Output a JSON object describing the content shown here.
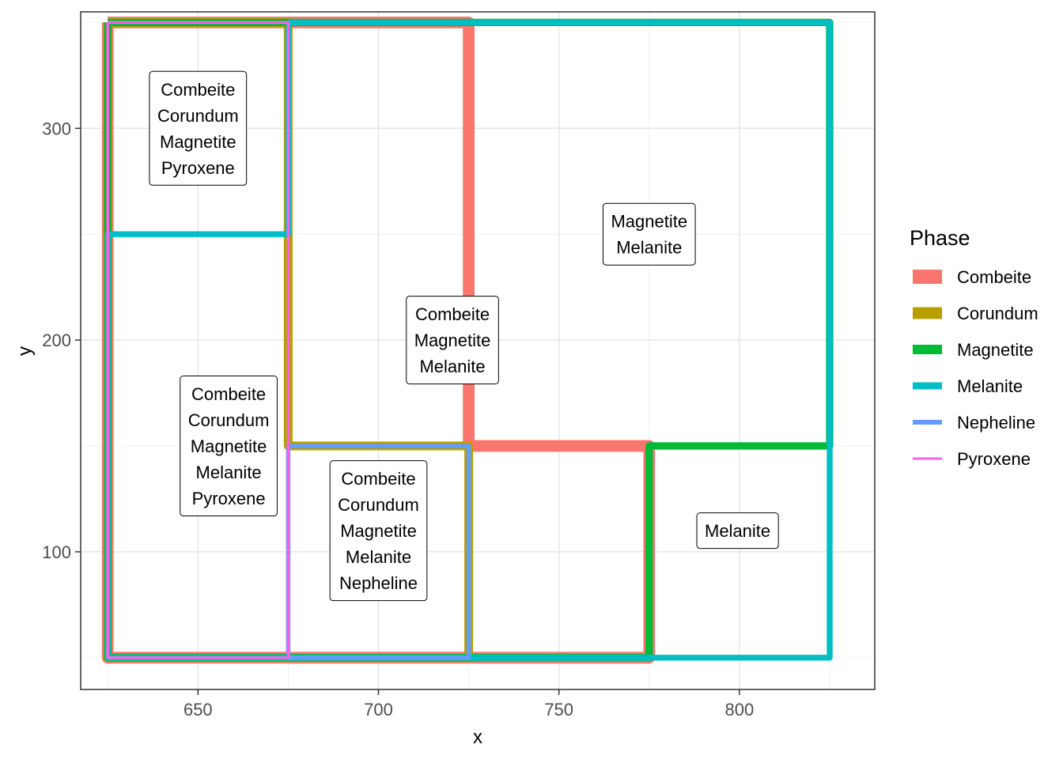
{
  "chart_data": {
    "type": "phase-diagram",
    "xlabel": "x",
    "ylabel": "y",
    "xlim": [
      617.5,
      837.5
    ],
    "ylim": [
      35,
      355
    ],
    "x_ticks": [
      650,
      700,
      750,
      800
    ],
    "y_ticks": [
      100,
      200,
      300
    ],
    "x_minor_ticks": [
      625,
      675,
      725,
      775,
      825
    ],
    "y_minor_ticks": [
      50,
      150,
      250,
      350
    ],
    "grid": true,
    "legend": {
      "title": "Phase",
      "position": "right",
      "entries": [
        {
          "name": "Combeite",
          "color": "#F8766D"
        },
        {
          "name": "Corundum",
          "color": "#B79F00"
        },
        {
          "name": "Magnetite",
          "color": "#00BA38"
        },
        {
          "name": "Melanite",
          "color": "#00BFC4"
        },
        {
          "name": "Nepheline",
          "color": "#619CFF"
        },
        {
          "name": "Pyroxene",
          "color": "#F564E3"
        }
      ]
    },
    "boundaries": [
      {
        "phase": "Combeite",
        "width": 4,
        "points": [
          [
            625,
            350
          ],
          [
            725,
            350
          ],
          [
            725,
            150
          ],
          [
            775,
            150
          ],
          [
            775,
            50
          ],
          [
            625,
            50
          ],
          [
            625,
            350
          ]
        ]
      },
      {
        "phase": "Corundum",
        "width": 3,
        "points": [
          [
            625,
            350
          ],
          [
            675,
            350
          ],
          [
            675,
            150
          ],
          [
            725,
            150
          ],
          [
            725,
            50
          ],
          [
            625,
            50
          ],
          [
            625,
            350
          ]
        ]
      },
      {
        "phase": "Magnetite",
        "width": 2.5,
        "points": [
          [
            625,
            350
          ],
          [
            825,
            350
          ],
          [
            825,
            150
          ],
          [
            775,
            150
          ],
          [
            775,
            50
          ],
          [
            625,
            50
          ],
          [
            625,
            350
          ]
        ]
      },
      {
        "phase": "Melanite",
        "width": 2,
        "points": [
          [
            675,
            350
          ],
          [
            825,
            350
          ],
          [
            825,
            50
          ],
          [
            625,
            50
          ],
          [
            625,
            250
          ],
          [
            675,
            250
          ],
          [
            675,
            350
          ]
        ]
      },
      {
        "phase": "Nepheline",
        "width": 1.5,
        "points": [
          [
            675,
            150
          ],
          [
            725,
            150
          ],
          [
            725,
            50
          ],
          [
            675,
            50
          ],
          [
            675,
            150
          ]
        ]
      },
      {
        "phase": "Pyroxene",
        "width": 1,
        "points": [
          [
            625,
            350
          ],
          [
            675,
            350
          ],
          [
            675,
            50
          ],
          [
            625,
            50
          ],
          [
            625,
            350
          ]
        ]
      }
    ],
    "regions": [
      {
        "x": 650,
        "y": 300,
        "lines": [
          "Combeite",
          "Corundum",
          "Magnetite",
          "Pyroxene"
        ]
      },
      {
        "x": 775,
        "y": 250,
        "lines": [
          "Magnetite",
          "Melanite"
        ]
      },
      {
        "x": 720.5,
        "y": 200,
        "lines": [
          "Combeite",
          "Magnetite",
          "Melanite"
        ]
      },
      {
        "x": 658.5,
        "y": 150,
        "lines": [
          "Combeite",
          "Corundum",
          "Magnetite",
          "Melanite",
          "Pyroxene"
        ]
      },
      {
        "x": 700,
        "y": 110,
        "lines": [
          "Combeite",
          "Corundum",
          "Magnetite",
          "Melanite",
          "Nepheline"
        ]
      },
      {
        "x": 799.5,
        "y": 110,
        "lines": [
          "Melanite"
        ]
      }
    ]
  }
}
